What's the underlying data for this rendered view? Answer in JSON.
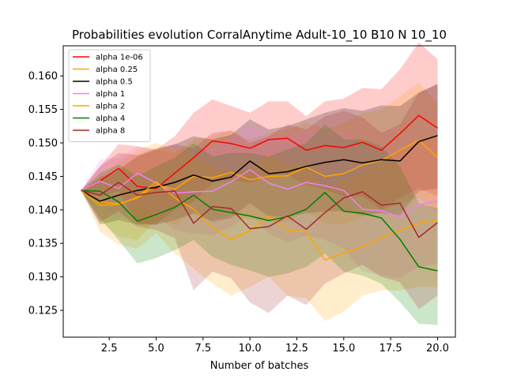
{
  "chart_data": {
    "type": "line",
    "title": "Probabilities evolution CorralAnytime Adult-10_10 B10 N 10_10",
    "xlabel": "Number of batches",
    "ylabel": "",
    "xlim": [
      0.05,
      20.95
    ],
    "ylim": [
      0.121,
      0.1645
    ],
    "x_ticks": [
      2.5,
      5.0,
      7.5,
      10.0,
      12.5,
      15.0,
      17.5,
      20.0
    ],
    "x_tick_labels": [
      "2.5",
      "5.0",
      "7.5",
      "10.0",
      "12.5",
      "15.0",
      "17.5",
      "20.0"
    ],
    "y_ticks": [
      0.125,
      0.13,
      0.135,
      0.14,
      0.145,
      0.15,
      0.155,
      0.16
    ],
    "y_tick_labels": [
      "0.125",
      "0.130",
      "0.135",
      "0.140",
      "0.145",
      "0.150",
      "0.155",
      "0.160"
    ],
    "grid": false,
    "legend_position": "upper-left",
    "x": [
      1,
      2,
      3,
      4,
      5,
      6,
      7,
      8,
      9,
      10,
      11,
      12,
      13,
      14,
      15,
      16,
      17,
      18,
      19,
      20
    ],
    "series": [
      {
        "name": "alpha 1e-06",
        "color": "#ff0000",
        "values": [
          0.1429,
          0.1443,
          0.1462,
          0.1435,
          0.1432,
          0.1455,
          0.1478,
          0.1503,
          0.1499,
          0.1492,
          0.1505,
          0.1507,
          0.1489,
          0.1496,
          0.1493,
          0.1501,
          0.1489,
          0.1514,
          0.1541,
          0.1522
        ],
        "upper": [
          0.1429,
          0.1465,
          0.1498,
          0.1495,
          0.149,
          0.151,
          0.1545,
          0.1565,
          0.1555,
          0.1545,
          0.1562,
          0.1562,
          0.154,
          0.1562,
          0.1566,
          0.1582,
          0.158,
          0.161,
          0.165,
          0.1625
        ],
        "lower": [
          0.1429,
          0.142,
          0.1428,
          0.138,
          0.1378,
          0.14,
          0.1412,
          0.144,
          0.1445,
          0.144,
          0.145,
          0.1452,
          0.1437,
          0.143,
          0.142,
          0.142,
          0.14,
          0.1418,
          0.1432,
          0.142
        ]
      },
      {
        "name": "alpha 0.25",
        "color": "#ffa500",
        "values": [
          0.1429,
          0.1412,
          0.1409,
          0.1418,
          0.1437,
          0.1431,
          0.145,
          0.1448,
          0.1456,
          0.1445,
          0.145,
          0.1451,
          0.1464,
          0.145,
          0.1454,
          0.1467,
          0.1474,
          0.1489,
          0.1504,
          0.1478
        ],
        "upper": [
          0.1429,
          0.144,
          0.1458,
          0.148,
          0.149,
          0.1485,
          0.1505,
          0.151,
          0.152,
          0.1505,
          0.1515,
          0.152,
          0.153,
          0.152,
          0.153,
          0.1545,
          0.155,
          0.157,
          0.159,
          0.156
        ],
        "lower": [
          0.1429,
          0.1385,
          0.136,
          0.1355,
          0.1385,
          0.1378,
          0.1395,
          0.1385,
          0.1392,
          0.1385,
          0.1385,
          0.1382,
          0.1398,
          0.138,
          0.1378,
          0.139,
          0.1398,
          0.1408,
          0.1418,
          0.1395
        ]
      },
      {
        "name": "alpha 0.5",
        "color": "#000000",
        "values": [
          0.1429,
          0.1413,
          0.1422,
          0.1429,
          0.1434,
          0.1441,
          0.1452,
          0.1443,
          0.1449,
          0.1473,
          0.1454,
          0.1457,
          0.1465,
          0.1471,
          0.1475,
          0.147,
          0.1475,
          0.1473,
          0.1502,
          0.1511
        ],
        "upper": [
          0.1429,
          0.1448,
          0.146,
          0.148,
          0.149,
          0.1498,
          0.151,
          0.1505,
          0.1512,
          0.1535,
          0.152,
          0.1525,
          0.1535,
          0.1545,
          0.1552,
          0.1548,
          0.1556,
          0.1555,
          0.1575,
          0.1588
        ],
        "lower": [
          0.1429,
          0.1378,
          0.1385,
          0.1378,
          0.1378,
          0.1385,
          0.1395,
          0.1382,
          0.1388,
          0.141,
          0.139,
          0.139,
          0.1395,
          0.1398,
          0.1398,
          0.1392,
          0.1395,
          0.1392,
          0.1428,
          0.1432
        ]
      },
      {
        "name": "alpha 1",
        "color": "#ee82ee",
        "values": [
          0.1429,
          0.1443,
          0.1432,
          0.1455,
          0.144,
          0.1425,
          0.1427,
          0.1428,
          0.1442,
          0.146,
          0.144,
          0.1431,
          0.1441,
          0.1436,
          0.1429,
          0.1401,
          0.1399,
          0.1389,
          0.1408,
          0.1413
        ],
        "upper": [
          0.1429,
          0.1475,
          0.1478,
          0.1495,
          0.149,
          0.148,
          0.149,
          0.1495,
          0.151,
          0.1525,
          0.1515,
          0.151,
          0.152,
          0.1518,
          0.1515,
          0.1495,
          0.1495,
          0.148,
          0.15,
          0.1505
        ],
        "lower": [
          0.1429,
          0.141,
          0.1386,
          0.1408,
          0.139,
          0.137,
          0.1365,
          0.1362,
          0.1375,
          0.1395,
          0.1365,
          0.1352,
          0.1362,
          0.1355,
          0.1342,
          0.1308,
          0.1302,
          0.1298,
          0.1315,
          0.132
        ]
      },
      {
        "name": "alpha 2",
        "color": "#ffa500",
        "values": [
          0.1429,
          0.1407,
          0.1408,
          0.1419,
          0.1442,
          0.1418,
          0.1401,
          0.1374,
          0.1356,
          0.1369,
          0.1391,
          0.137,
          0.1367,
          0.1325,
          0.1336,
          0.1345,
          0.1358,
          0.137,
          0.138,
          0.1385
        ],
        "upper": [
          0.1429,
          0.145,
          0.147,
          0.149,
          0.15,
          0.149,
          0.148,
          0.1465,
          0.1455,
          0.1462,
          0.1482,
          0.1468,
          0.1468,
          0.143,
          0.1445,
          0.1455,
          0.147,
          0.149,
          0.15,
          0.151
        ],
        "lower": [
          0.1429,
          0.1368,
          0.1348,
          0.1342,
          0.1365,
          0.1335,
          0.1312,
          0.129,
          0.1272,
          0.1285,
          0.13,
          0.1272,
          0.1268,
          0.1234,
          0.1248,
          0.1272,
          0.128,
          0.128,
          0.1285,
          0.1285
        ]
      },
      {
        "name": "alpha 4",
        "color": "#008000",
        "values": [
          0.1429,
          0.1428,
          0.1412,
          0.1383,
          0.1393,
          0.1404,
          0.1422,
          0.1401,
          0.1396,
          0.1391,
          0.1384,
          0.139,
          0.1401,
          0.1426,
          0.1398,
          0.1395,
          0.1388,
          0.1356,
          0.1315,
          0.1309
        ],
        "upper": [
          0.1429,
          0.1455,
          0.1468,
          0.145,
          0.1465,
          0.1478,
          0.15,
          0.148,
          0.1485,
          0.1485,
          0.148,
          0.149,
          0.15,
          0.1528,
          0.1505,
          0.1505,
          0.1495,
          0.1465,
          0.141,
          0.1402
        ],
        "lower": [
          0.1429,
          0.1388,
          0.1355,
          0.132,
          0.1328,
          0.134,
          0.1355,
          0.133,
          0.1318,
          0.131,
          0.13,
          0.1305,
          0.1315,
          0.1335,
          0.1308,
          0.1302,
          0.129,
          0.1262,
          0.123,
          0.1228
        ]
      },
      {
        "name": "alpha 8",
        "color": "#a52a2a",
        "values": [
          0.1429,
          0.1422,
          0.1441,
          0.1422,
          0.1426,
          0.1428,
          0.138,
          0.1405,
          0.1402,
          0.1372,
          0.1375,
          0.1391,
          0.1371,
          0.1396,
          0.1418,
          0.1427,
          0.1407,
          0.141,
          0.1359,
          0.1381
        ],
        "upper": [
          0.1429,
          0.1465,
          0.1485,
          0.1482,
          0.1492,
          0.1498,
          0.1492,
          0.1515,
          0.1518,
          0.15,
          0.151,
          0.1528,
          0.152,
          0.154,
          0.1548,
          0.1538,
          0.1515,
          0.1528,
          0.1575,
          0.1588
        ],
        "lower": [
          0.1429,
          0.1382,
          0.1398,
          0.1375,
          0.137,
          0.1358,
          0.128,
          0.1308,
          0.1298,
          0.1262,
          0.1246,
          0.1272,
          0.1258,
          0.129,
          0.1305,
          0.1318,
          0.13,
          0.1292,
          0.1252,
          0.1272
        ]
      }
    ]
  }
}
